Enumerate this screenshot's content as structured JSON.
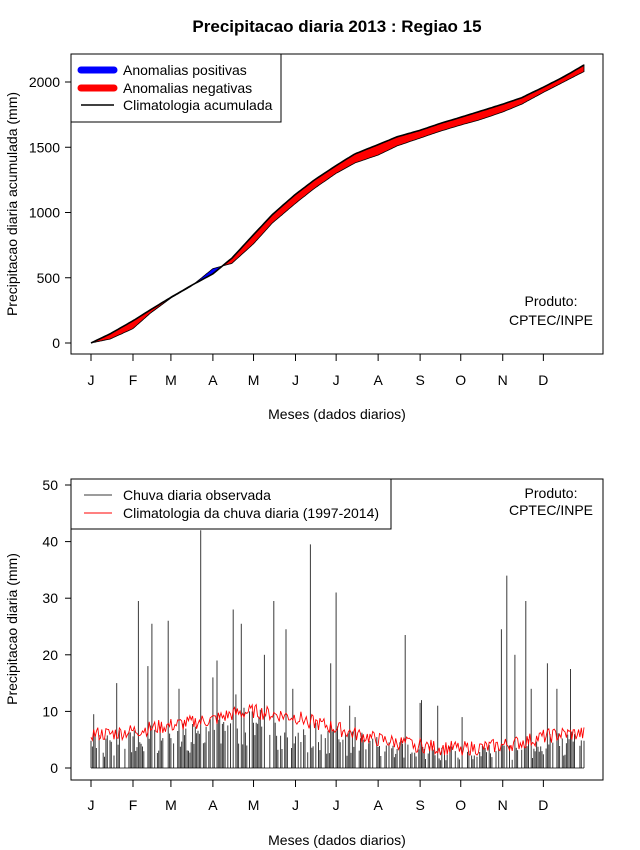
{
  "title": "Precipitacao diaria 2013 : Regiao 15",
  "colors": {
    "positive": "#0000ff",
    "negative": "#ff0000",
    "climatology": "#000000",
    "observed": "#3a3a3a",
    "clim_daily": "#ff0000"
  },
  "chart_data": [
    {
      "type": "area",
      "title": "Precipitacao diaria 2013 : Regiao 15",
      "xlabel": "Meses (dados diarios)",
      "ylabel": "Precipitacao diaria acumulada (mm)",
      "xlim": [
        1,
        365
      ],
      "ylim": [
        0,
        2150
      ],
      "y_ticks": [
        "0",
        "500",
        "1000",
        "1500",
        "2000"
      ],
      "month_labels": [
        "J",
        "F",
        "M",
        "A",
        "M",
        "J",
        "J",
        "A",
        "S",
        "O",
        "N",
        "D"
      ],
      "legend": [
        "Anomalias positivas",
        "Anomalias negativas",
        "Climatologia acumulada"
      ],
      "legend_position": "top-left",
      "annotation": [
        "Produto:",
        "CPTEC/INPE"
      ],
      "climatology_cumulative": {
        "day": [
          1,
          15,
          32,
          45,
          60,
          75,
          91,
          105,
          121,
          135,
          152,
          166,
          182,
          196,
          213,
          227,
          244,
          258,
          274,
          288,
          305,
          319,
          335,
          350,
          365
        ],
        "value": [
          0,
          70,
          170,
          255,
          350,
          440,
          530,
          650,
          830,
          985,
          1140,
          1250,
          1360,
          1450,
          1520,
          1580,
          1630,
          1680,
          1730,
          1775,
          1830,
          1880,
          1960,
          2040,
          2130
        ]
      },
      "observed_cumulative": {
        "day": [
          1,
          15,
          32,
          45,
          60,
          75,
          91,
          105,
          121,
          135,
          152,
          166,
          182,
          196,
          213,
          227,
          244,
          258,
          274,
          288,
          305,
          319,
          335,
          350,
          365
        ],
        "value": [
          0,
          30,
          110,
          230,
          345,
          435,
          570,
          610,
          760,
          920,
          1070,
          1185,
          1300,
          1380,
          1440,
          1510,
          1570,
          1620,
          1670,
          1710,
          1770,
          1830,
          1920,
          2000,
          2080
        ]
      }
    },
    {
      "type": "bar",
      "xlabel": "Meses (dados diarios)",
      "ylabel": "Precipitacao diaria (mm)",
      "xlim": [
        1,
        365
      ],
      "ylim": [
        0,
        50
      ],
      "y_ticks": [
        "0",
        "10",
        "20",
        "30",
        "40",
        "50"
      ],
      "month_labels": [
        "J",
        "F",
        "M",
        "A",
        "M",
        "J",
        "J",
        "A",
        "S",
        "O",
        "N",
        "D"
      ],
      "legend": [
        "Chuva diaria observada",
        "Climatologia da chuva diaria (1997-2014)"
      ],
      "legend_position": "top-left",
      "annotation": [
        "Produto:",
        "CPTEC/INPE"
      ],
      "observed_peaks": {
        "day": [
          3,
          20,
          36,
          43,
          46,
          58,
          66,
          82,
          91,
          94,
          106,
          108,
          112,
          120,
          129,
          136,
          145,
          150,
          163,
          167,
          178,
          182,
          192,
          196,
          202,
          233,
          244,
          245,
          257,
          275,
          304,
          308,
          314,
          322,
          326,
          338,
          345,
          355
        ],
        "value": [
          9.5,
          15,
          29.5,
          18,
          25.5,
          26,
          14,
          42,
          16,
          19,
          28,
          13,
          25.5,
          10,
          20,
          29.5,
          24.5,
          14,
          39.5,
          8,
          18.5,
          31,
          11,
          9,
          5,
          23.5,
          11.5,
          12,
          11,
          9,
          24.5,
          34,
          20,
          29.5,
          14,
          18.5,
          14,
          17.5
        ]
      },
      "climatology_daily": {
        "day": [
          1,
          15,
          32,
          45,
          60,
          75,
          91,
          105,
          121,
          135,
          152,
          166,
          182,
          196,
          213,
          227,
          244,
          258,
          274,
          288,
          305,
          319,
          335,
          350,
          365
        ],
        "value": [
          6,
          6,
          6.5,
          7,
          7.5,
          8,
          8.5,
          9.5,
          10,
          9.5,
          9,
          8,
          7,
          6,
          5,
          4.5,
          4,
          3.5,
          3.5,
          3.5,
          4,
          4.5,
          5.5,
          6,
          6
        ]
      }
    }
  ]
}
